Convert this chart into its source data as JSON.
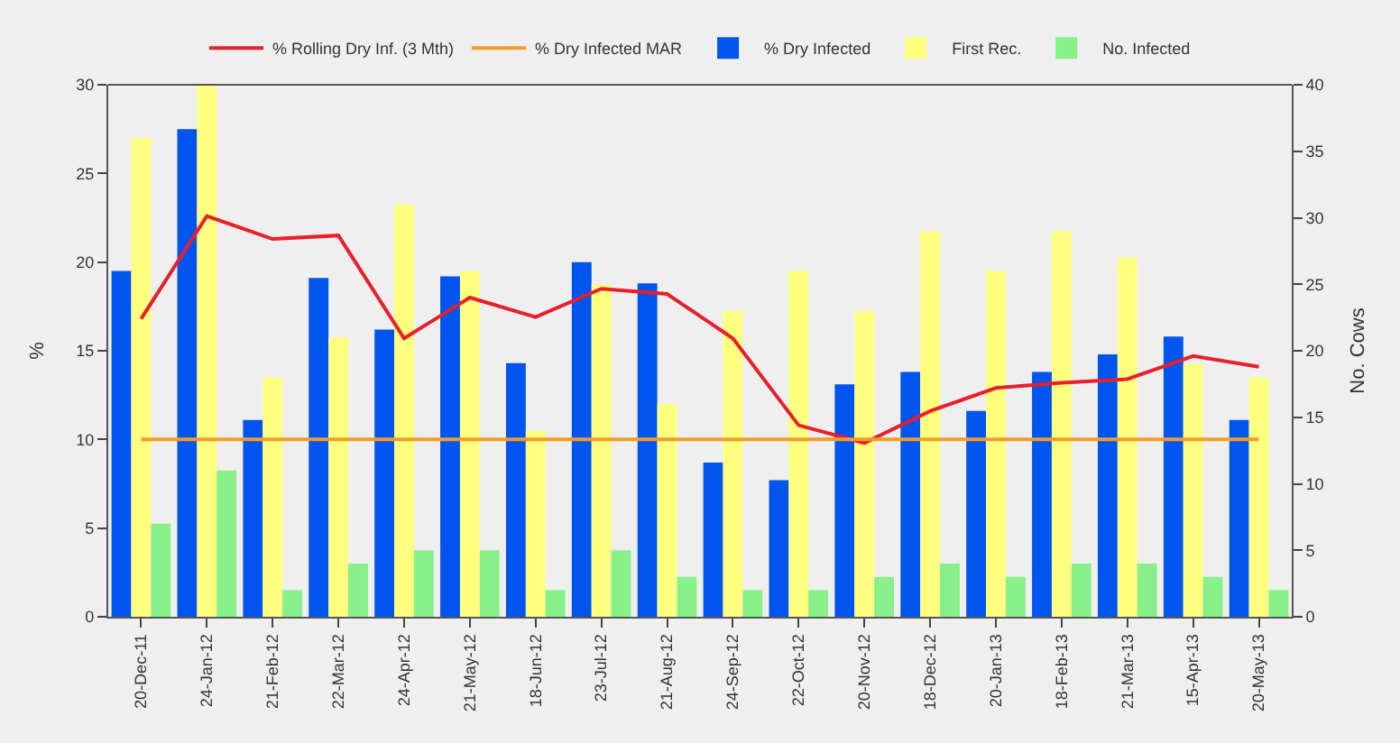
{
  "chart_data": {
    "type": "bar",
    "categories": [
      "20-Dec-11",
      "24-Jan-12",
      "21-Feb-12",
      "22-Mar-12",
      "24-Apr-12",
      "21-May-12",
      "18-Jun-12",
      "23-Jul-12",
      "21-Aug-12",
      "24-Sep-12",
      "22-Oct-12",
      "20-Nov-12",
      "18-Dec-12",
      "20-Jan-13",
      "18-Feb-13",
      "21-Mar-13",
      "15-Apr-13",
      "20-May-13"
    ],
    "series": [
      {
        "name": "% Rolling Dry Inf. (3 Mth)",
        "type": "line",
        "axis": "y",
        "color": "#e8202a",
        "values": [
          16.8,
          22.6,
          21.3,
          21.5,
          15.7,
          18.0,
          16.9,
          18.5,
          18.2,
          15.7,
          10.8,
          9.8,
          11.6,
          12.9,
          13.2,
          13.4,
          14.7,
          14.1
        ]
      },
      {
        "name": "% Dry Infected MAR",
        "type": "line",
        "axis": "y",
        "color": "#f39c2a",
        "values": [
          10,
          10,
          10,
          10,
          10,
          10,
          10,
          10,
          10,
          10,
          10,
          10,
          10,
          10,
          10,
          10,
          10,
          10
        ]
      },
      {
        "name": "% Dry Infected",
        "axis": "y",
        "color": "#0055ee",
        "values": [
          19.5,
          27.5,
          11.1,
          19.1,
          16.2,
          19.2,
          14.3,
          20.0,
          18.8,
          8.7,
          7.7,
          13.1,
          13.8,
          11.6,
          13.8,
          14.8,
          15.8,
          11.1
        ]
      },
      {
        "name": "First Rec.",
        "axis": "y2",
        "color": "#ffff80",
        "values": [
          36,
          40,
          18,
          21,
          31,
          26,
          14,
          25,
          16,
          23,
          26,
          23,
          29,
          26,
          29,
          27,
          19,
          18
        ]
      },
      {
        "name": "No. Infected",
        "axis": "y2",
        "color": "#88f088",
        "values": [
          7,
          11,
          2,
          4,
          5,
          5,
          2,
          5,
          3,
          2,
          2,
          3,
          4,
          3,
          4,
          4,
          3,
          2
        ]
      }
    ],
    "ylabel": "%",
    "y2label": "No. Cows",
    "ylim": [
      0,
      30
    ],
    "yticks": [
      0,
      5,
      10,
      15,
      20,
      25,
      30
    ],
    "y2lim": [
      0,
      40
    ],
    "y2ticks": [
      0,
      5,
      10,
      15,
      20,
      25,
      30,
      35,
      40
    ],
    "legend": "top",
    "grid": false,
    "line_style": "solid",
    "marker": "none"
  }
}
